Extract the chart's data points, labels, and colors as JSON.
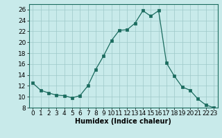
{
  "x": [
    0,
    1,
    2,
    3,
    4,
    5,
    6,
    7,
    8,
    9,
    10,
    11,
    12,
    13,
    14,
    15,
    16,
    17,
    18,
    19,
    20,
    21,
    22,
    23
  ],
  "y": [
    12.5,
    11.2,
    10.7,
    10.3,
    10.2,
    9.8,
    10.2,
    12.0,
    15.0,
    17.5,
    20.3,
    22.2,
    22.3,
    23.5,
    25.8,
    24.8,
    25.8,
    16.2,
    13.8,
    11.8,
    11.2,
    9.6,
    8.5,
    8.0
  ],
  "line_color": "#1a6b5e",
  "marker": "s",
  "marker_size": 2.5,
  "bg_color": "#c8eaea",
  "grid_color": "#9ec8c8",
  "xlabel": "Humidex (Indice chaleur)",
  "ylabel": "",
  "xlim": [
    -0.5,
    23.5
  ],
  "ylim": [
    8,
    27
  ],
  "yticks": [
    8,
    10,
    12,
    14,
    16,
    18,
    20,
    22,
    24,
    26
  ],
  "xticks": [
    0,
    1,
    2,
    3,
    4,
    5,
    6,
    7,
    8,
    9,
    10,
    11,
    12,
    13,
    14,
    15,
    16,
    17,
    18,
    19,
    20,
    21,
    22,
    23
  ],
  "label_fontsize": 7,
  "tick_fontsize": 6.5
}
